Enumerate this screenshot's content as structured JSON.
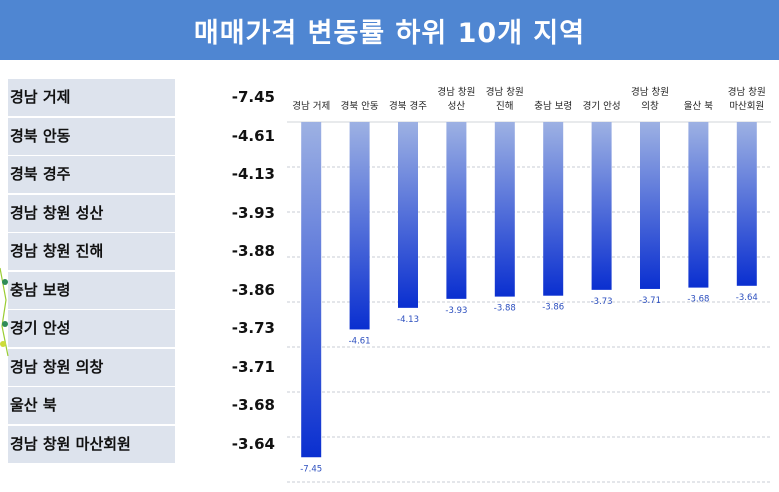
{
  "banner": {
    "title": "매매가격 변동률 하위 10개 지역"
  },
  "table": {
    "rows": [
      {
        "name": "경남 거제",
        "value": "-7.45"
      },
      {
        "name": "경북 안동",
        "value": "-4.61"
      },
      {
        "name": "경북 경주",
        "value": "-4.13"
      },
      {
        "name": "경남 창원 성산",
        "value": "-3.93"
      },
      {
        "name": "경남 창원 진해",
        "value": "-3.88"
      },
      {
        "name": "충남 보령",
        "value": "-3.86"
      },
      {
        "name": "경기 안성",
        "value": "-3.73"
      },
      {
        "name": "경남 창원 의창",
        "value": "-3.71"
      },
      {
        "name": "울산 북",
        "value": "-3.68"
      },
      {
        "name": "경남 창원 마산회원",
        "value": "-3.64"
      }
    ]
  },
  "chart_data": {
    "type": "bar",
    "categories": [
      [
        "경남 거제"
      ],
      [
        "경북 안동"
      ],
      [
        "경북 경주"
      ],
      [
        "경남 창원",
        "성산"
      ],
      [
        "경남 창원",
        "진해"
      ],
      [
        "충남 보령"
      ],
      [
        "경기 안성"
      ],
      [
        "경남 창원",
        "의창"
      ],
      [
        "울산 북"
      ],
      [
        "경남 창원",
        "마산회원"
      ]
    ],
    "values": [
      -7.45,
      -4.61,
      -4.13,
      -3.93,
      -3.88,
      -3.86,
      -3.73,
      -3.71,
      -3.68,
      -3.64
    ],
    "value_labels": [
      "-7.45",
      "-4.61",
      "-4.13",
      "-3.93",
      "-3.88",
      "-3.86",
      "-3.73",
      "-3.71",
      "-3.68",
      "-3.64"
    ],
    "ylim": [
      -8,
      0
    ],
    "grid": true,
    "bar_color_top": "#9db1e3",
    "bar_color_bottom": "#0a2fd0",
    "title": "",
    "xlabel": "",
    "ylabel": ""
  }
}
